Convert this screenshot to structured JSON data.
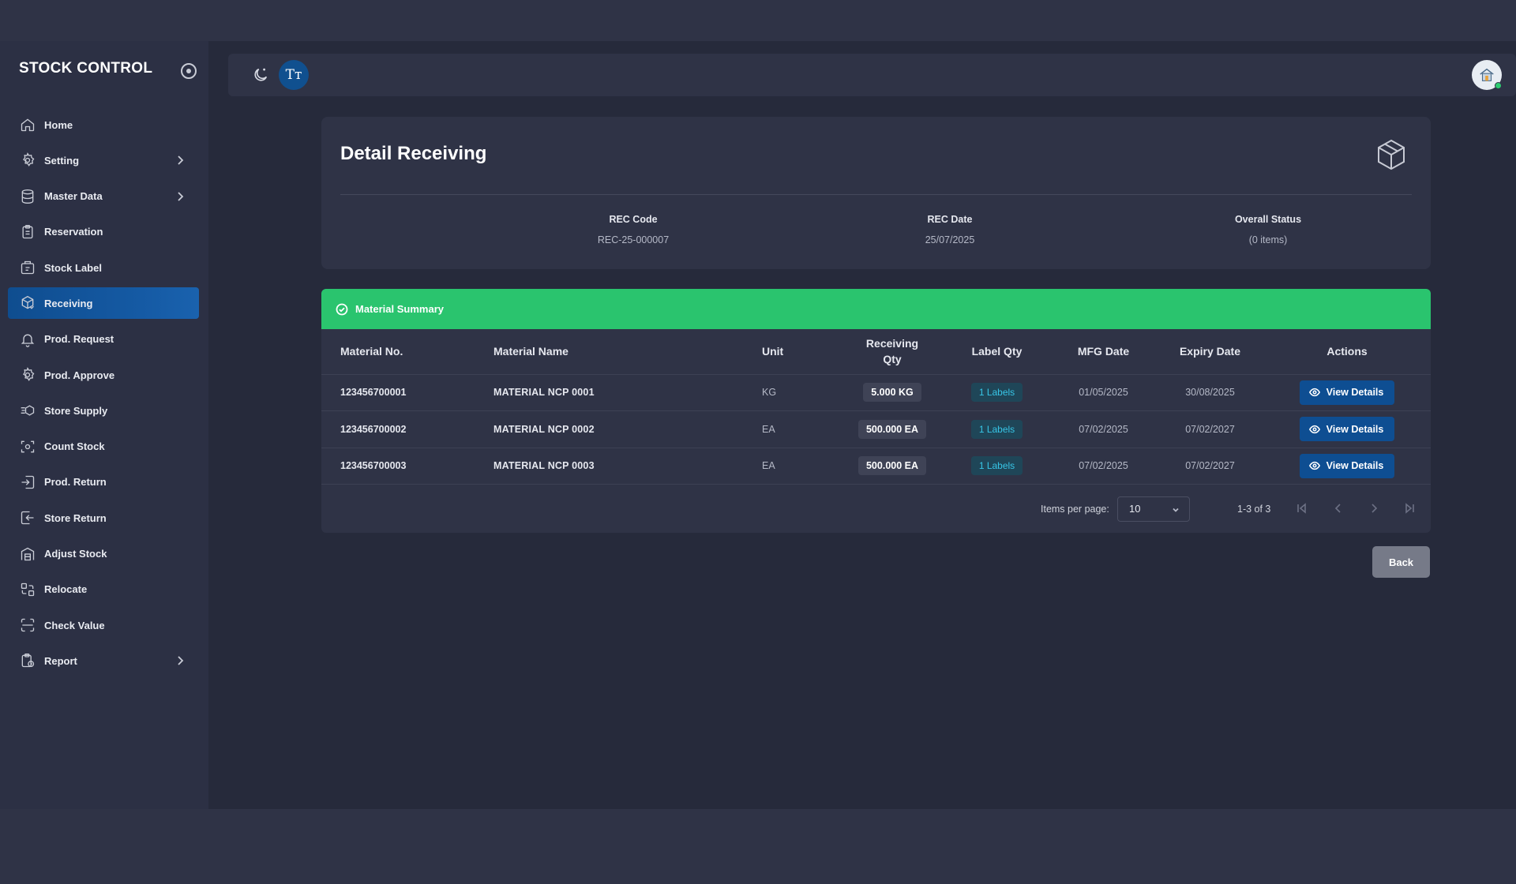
{
  "app": {
    "title": "STOCK CONTROL"
  },
  "sidebar": {
    "items": [
      {
        "label": "Home",
        "icon": "home-icon",
        "has_submenu": false,
        "active": false
      },
      {
        "label": "Setting",
        "icon": "gear-icon",
        "has_submenu": true,
        "active": false
      },
      {
        "label": "Master Data",
        "icon": "database-icon",
        "has_submenu": true,
        "active": false
      },
      {
        "label": "Reservation",
        "icon": "clipboard-icon",
        "has_submenu": false,
        "active": false
      },
      {
        "label": "Stock Label",
        "icon": "label-icon",
        "has_submenu": false,
        "active": false
      },
      {
        "label": "Receiving",
        "icon": "package-receive-icon",
        "has_submenu": false,
        "active": true
      },
      {
        "label": "Prod. Request",
        "icon": "bell-icon",
        "has_submenu": false,
        "active": false
      },
      {
        "label": "Prod. Approve",
        "icon": "settings-check-icon",
        "has_submenu": false,
        "active": false
      },
      {
        "label": "Store Supply",
        "icon": "supply-icon",
        "has_submenu": false,
        "active": false
      },
      {
        "label": "Count Stock",
        "icon": "scan-icon",
        "has_submenu": false,
        "active": false
      },
      {
        "label": "Prod. Return",
        "icon": "return-in-icon",
        "has_submenu": false,
        "active": false
      },
      {
        "label": "Store Return",
        "icon": "return-out-icon",
        "has_submenu": false,
        "active": false
      },
      {
        "label": "Adjust Stock",
        "icon": "warehouse-icon",
        "has_submenu": false,
        "active": false
      },
      {
        "label": "Relocate",
        "icon": "relocate-icon",
        "has_submenu": false,
        "active": false
      },
      {
        "label": "Check Value",
        "icon": "scan-line-icon",
        "has_submenu": false,
        "active": false
      },
      {
        "label": "Report",
        "icon": "report-icon",
        "has_submenu": true,
        "active": false
      }
    ]
  },
  "topbar": {
    "font_button": "Tт"
  },
  "detail": {
    "title": "Detail Receiving",
    "rec_code_label": "REC Code",
    "rec_code": "REC-25-000007",
    "rec_date_label": "REC Date",
    "rec_date": "25/07/2025",
    "status_label": "Overall Status",
    "status_value": "(0 items)"
  },
  "summary": {
    "title": "Material Summary",
    "columns": [
      "Material No.",
      "Material Name",
      "Unit",
      "Receiving Qty",
      "Label Qty",
      "MFG Date",
      "Expiry Date",
      "Actions"
    ],
    "rows": [
      {
        "material_no": "123456700001",
        "material_name": "MATERIAL NCP 0001",
        "unit": "KG",
        "qty": "5.000 KG",
        "labels": "1 Labels",
        "mfg": "01/05/2025",
        "expiry": "30/08/2025",
        "action": "View Details"
      },
      {
        "material_no": "123456700002",
        "material_name": "MATERIAL NCP 0002",
        "unit": "EA",
        "qty": "500.000 EA",
        "labels": "1 Labels",
        "mfg": "07/02/2025",
        "expiry": "07/02/2027",
        "action": "View Details"
      },
      {
        "material_no": "123456700003",
        "material_name": "MATERIAL NCP 0003",
        "unit": "EA",
        "qty": "500.000 EA",
        "labels": "1 Labels",
        "mfg": "07/02/2025",
        "expiry": "07/02/2027",
        "action": "View Details"
      }
    ]
  },
  "pagination": {
    "items_per_page_label": "Items per page:",
    "items_per_page": "10",
    "range": "1-3 of 3"
  },
  "actions": {
    "back": "Back"
  },
  "colors": {
    "accent": "#10508f",
    "summary_header": "#2ac46e",
    "label_badge_text": "#37c5e6",
    "back_button": "#767a88"
  }
}
